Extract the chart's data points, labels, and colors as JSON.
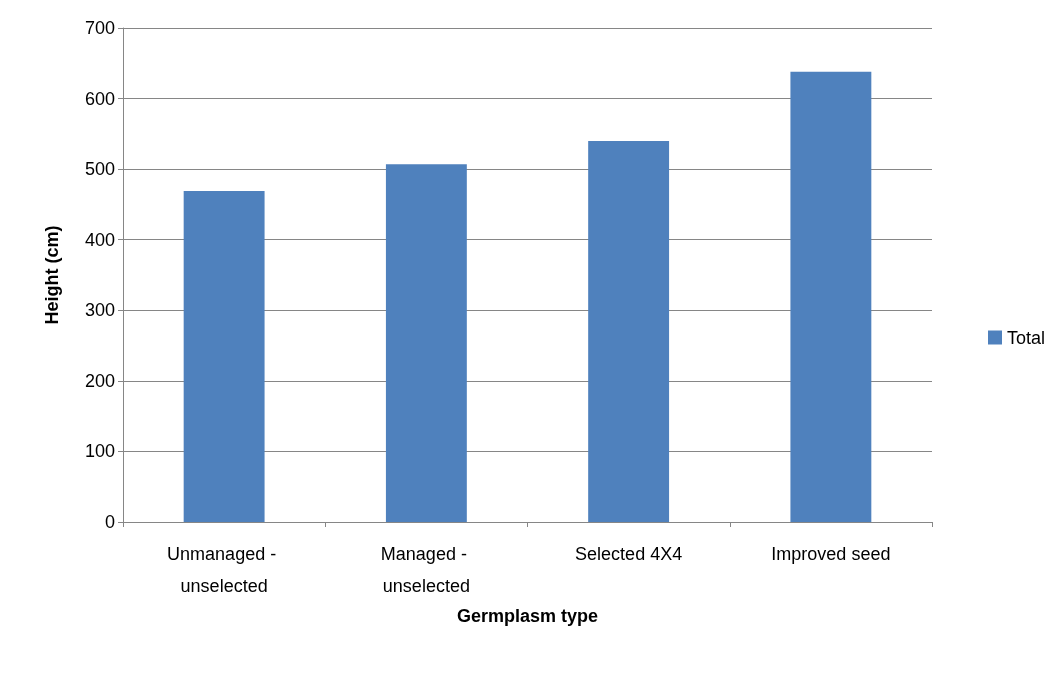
{
  "chart_data": {
    "type": "bar",
    "xlabel": "Germplasm type",
    "ylabel": "Height (cm)",
    "categories": [
      "Unmanaged - unselected",
      "Managed - unselected",
      "Selected 4X4",
      "Improved seed"
    ],
    "series": [
      {
        "name": "Total",
        "color": "#4f81bd",
        "values": [
          469,
          507,
          540,
          638
        ]
      }
    ],
    "ylim": [
      0,
      700
    ],
    "yticks": [
      0,
      100,
      200,
      300,
      400,
      500,
      600,
      700
    ],
    "grid": "y",
    "legend": "right"
  }
}
